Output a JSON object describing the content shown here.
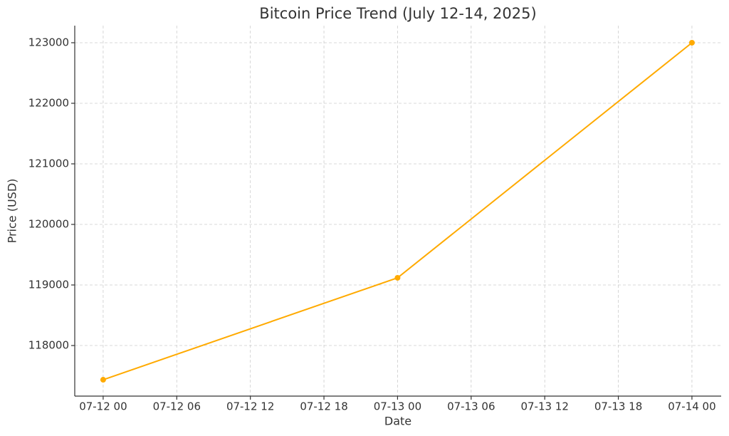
{
  "chart_data": {
    "type": "line",
    "title": "Bitcoin Price Trend (July 12-14, 2025)",
    "x_label": "Date",
    "y_label": "Price (USD)",
    "x": [
      "07-12 00",
      "07-13 00",
      "07-14 00"
    ],
    "series": [
      {
        "name": "Price",
        "color": "#ffaa00",
        "values": [
          117435,
          119118,
          123000
        ]
      }
    ],
    "xlim": [
      "07-11 21:41",
      "07-14 02:23"
    ],
    "xticks": [
      "07-12 00",
      "07-12 06",
      "07-12 12",
      "07-12 18",
      "07-13 00",
      "07-13 06",
      "07-13 12",
      "07-13 18",
      "07-14 00"
    ],
    "ylim": [
      117165,
      123282
    ],
    "yticks": [
      118000,
      119000,
      120000,
      121000,
      122000,
      123000
    ],
    "grid": true
  }
}
